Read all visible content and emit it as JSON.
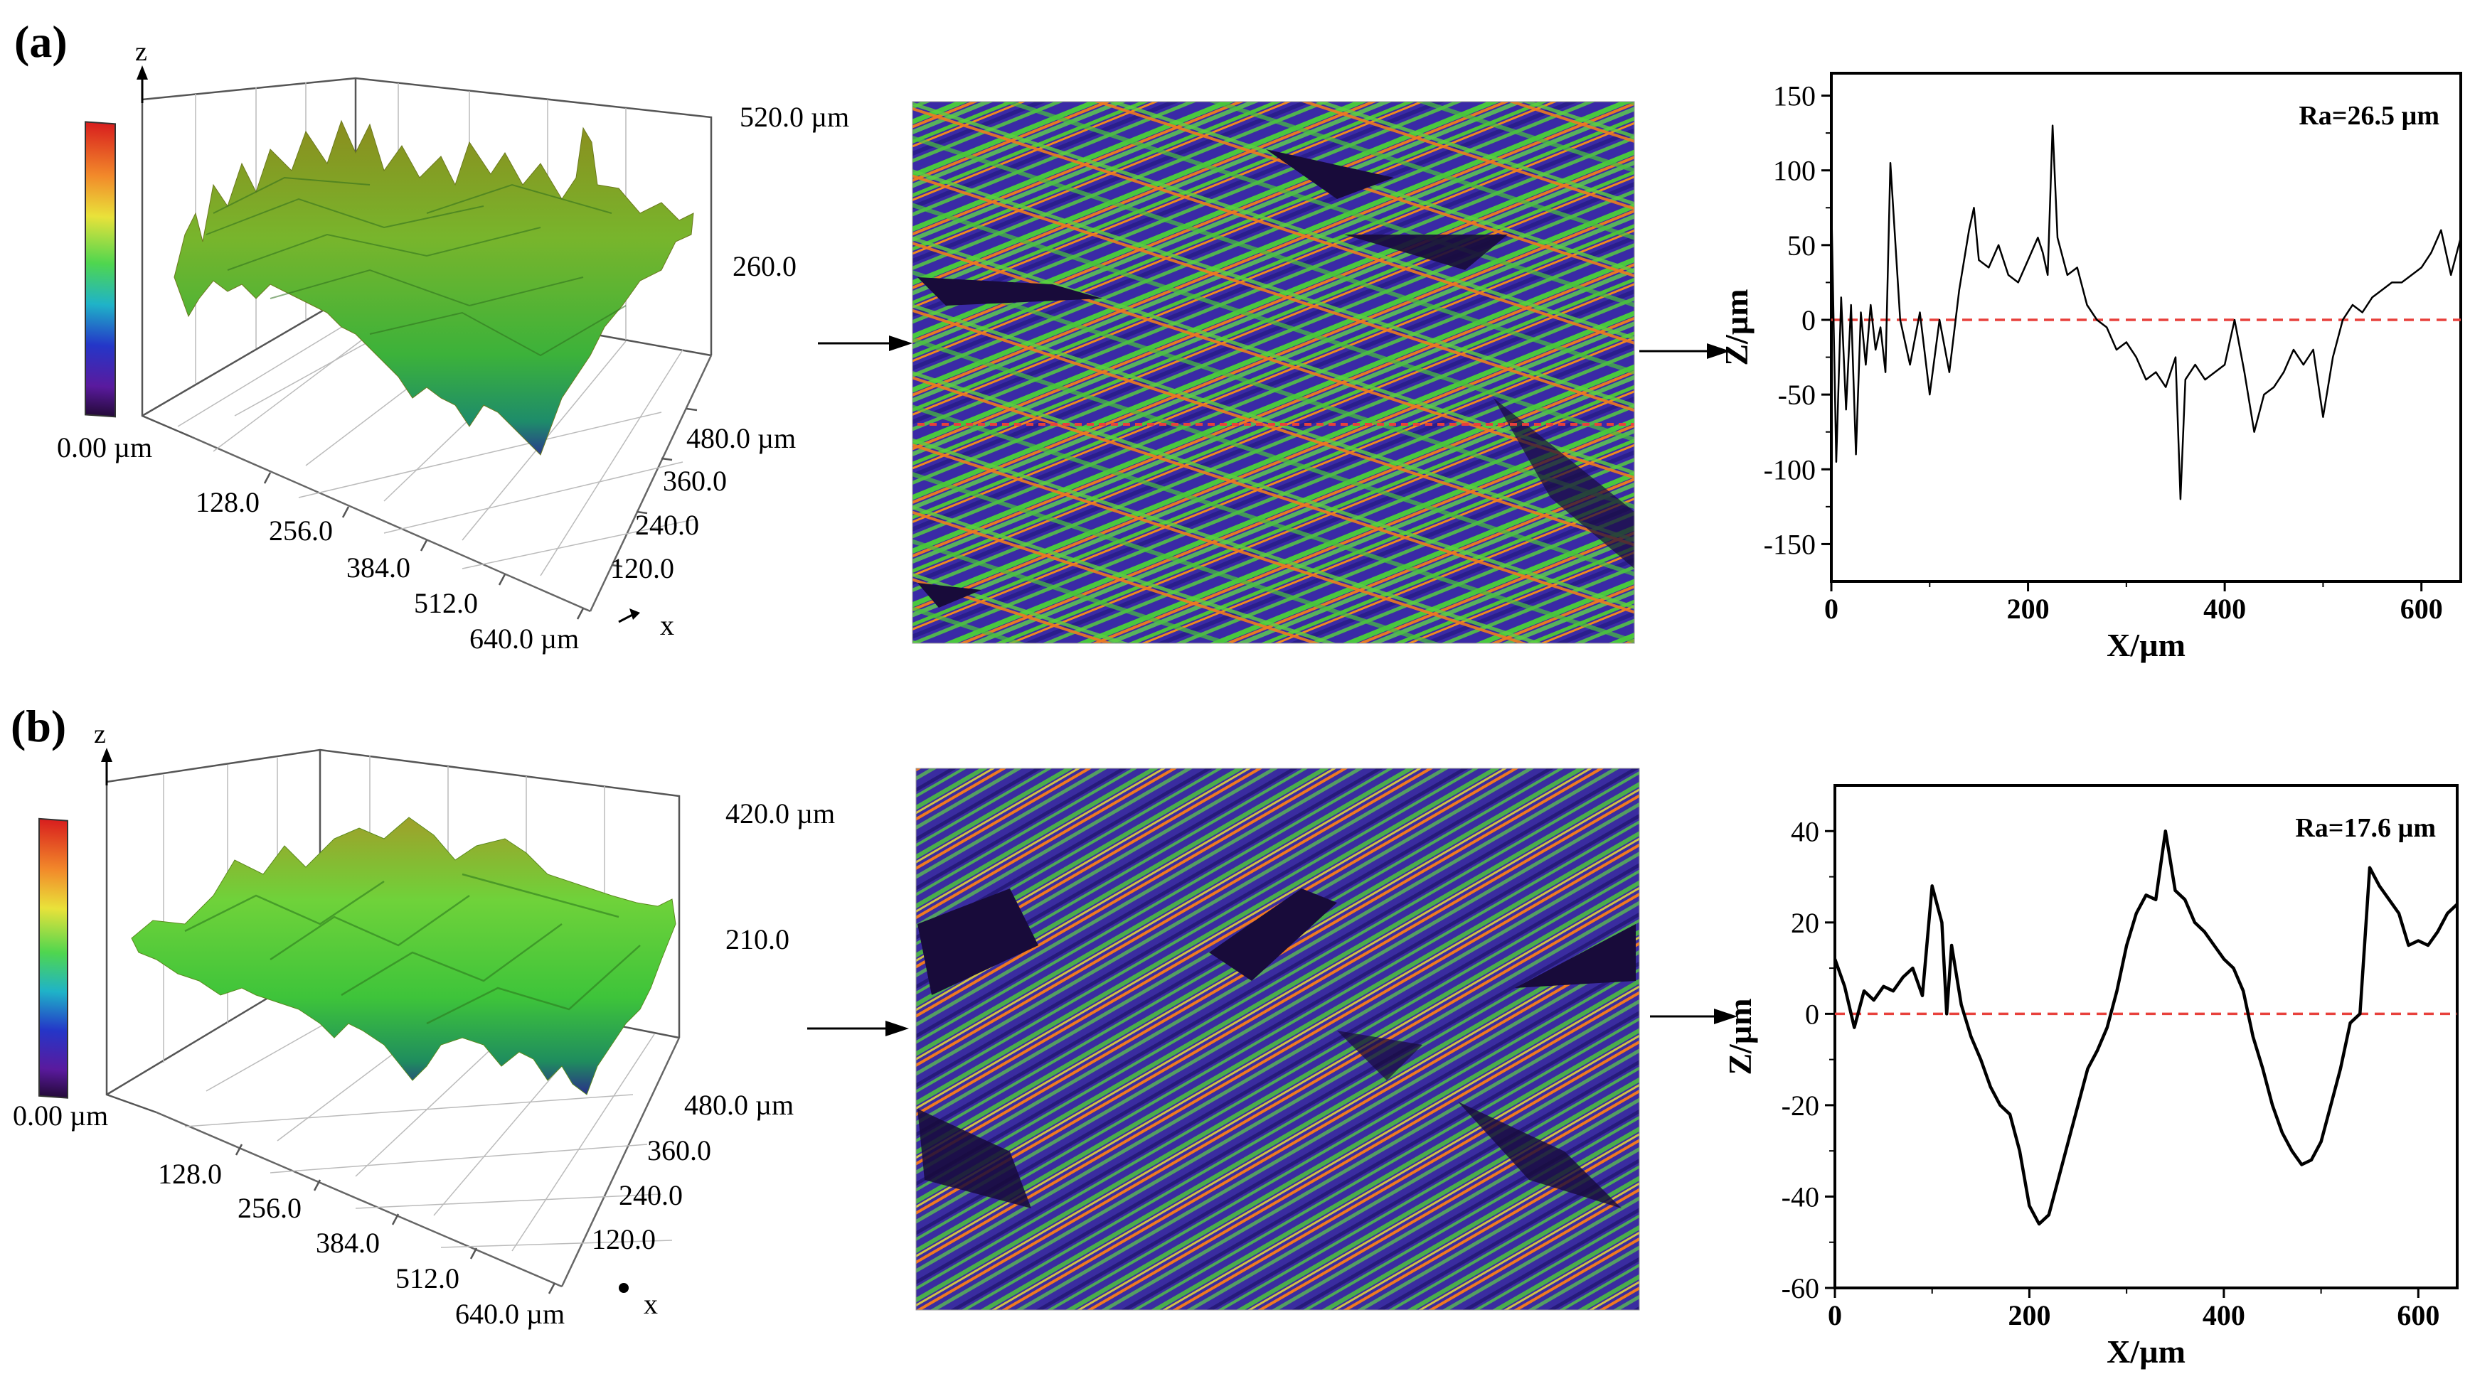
{
  "panels": [
    {
      "label": "(a)",
      "surface": {
        "z_axis": "z",
        "x_axis": "x",
        "z_ticks": [
          "520.0 µm",
          "260.0"
        ],
        "y_ticks": [
          "480.0 µm",
          "360.0",
          "240.0",
          "120.0"
        ],
        "x_ticks": [
          "128.0",
          "256.0",
          "384.0",
          "512.0",
          "640.0 µm"
        ],
        "colorbar_min": "0.00 µm"
      }
    },
    {
      "label": "(b)",
      "surface": {
        "z_axis": "z",
        "x_axis": "x",
        "z_ticks": [
          "420.0 µm",
          "210.0"
        ],
        "y_ticks": [
          "480.0 µm",
          "360.0",
          "240.0",
          "120.0"
        ],
        "x_ticks": [
          "128.0",
          "256.0",
          "384.0",
          "512.0",
          "640.0 µm"
        ],
        "colorbar_min": "0.00 µm"
      }
    }
  ],
  "colors": {
    "profile_line": "#000000",
    "zero_line": "#e8413c",
    "map_base": "#3a2a9a",
    "map_green": "#3fd13f",
    "map_orange": "#f07a1e",
    "map_dark": "#180b3a"
  },
  "chart_data": [
    {
      "type": "line",
      "annotation": "Ra=26.5 µm",
      "xlabel": "X/µm",
      "ylabel": "Z/µm",
      "xlim": [
        0,
        640
      ],
      "ylim": [
        -175,
        165
      ],
      "xticks": [
        0,
        200,
        400,
        600
      ],
      "yticks": [
        -150,
        -100,
        -50,
        0,
        50,
        100,
        150
      ],
      "reference_line": 0,
      "x": [
        0,
        5,
        10,
        15,
        20,
        25,
        30,
        35,
        40,
        45,
        50,
        55,
        60,
        70,
        80,
        90,
        100,
        110,
        120,
        130,
        140,
        145,
        150,
        160,
        170,
        180,
        190,
        200,
        210,
        215,
        220,
        225,
        230,
        240,
        250,
        260,
        270,
        280,
        290,
        300,
        310,
        320,
        330,
        340,
        350,
        355,
        360,
        370,
        380,
        390,
        400,
        410,
        420,
        430,
        440,
        450,
        460,
        470,
        480,
        490,
        500,
        510,
        520,
        530,
        540,
        550,
        560,
        570,
        580,
        590,
        600,
        610,
        620,
        630,
        640
      ],
      "values": [
        80,
        -95,
        15,
        -60,
        10,
        -90,
        5,
        -30,
        10,
        -20,
        -5,
        -35,
        105,
        0,
        -30,
        5,
        -50,
        0,
        -35,
        20,
        60,
        75,
        40,
        35,
        50,
        30,
        25,
        40,
        55,
        45,
        30,
        130,
        55,
        30,
        35,
        10,
        0,
        -5,
        -20,
        -15,
        -25,
        -40,
        -35,
        -45,
        -25,
        -120,
        -40,
        -30,
        -40,
        -35,
        -30,
        0,
        -35,
        -75,
        -50,
        -45,
        -35,
        -20,
        -30,
        -20,
        -65,
        -25,
        0,
        10,
        5,
        15,
        20,
        25,
        25,
        30,
        35,
        45,
        60,
        30,
        55
      ]
    },
    {
      "type": "line",
      "annotation": "Ra=17.6 µm",
      "xlabel": "X/µm",
      "ylabel": "Z/µm",
      "xlim": [
        0,
        640
      ],
      "ylim": [
        -60,
        50
      ],
      "xticks": [
        0,
        200,
        400,
        600
      ],
      "yticks": [
        -60,
        -40,
        -20,
        0,
        20,
        40
      ],
      "reference_line": 0,
      "x": [
        0,
        10,
        20,
        30,
        40,
        50,
        60,
        70,
        80,
        90,
        100,
        110,
        115,
        120,
        130,
        140,
        150,
        160,
        170,
        180,
        190,
        200,
        210,
        220,
        230,
        240,
        250,
        260,
        270,
        280,
        290,
        300,
        310,
        320,
        330,
        340,
        350,
        360,
        370,
        380,
        390,
        400,
        410,
        420,
        430,
        440,
        450,
        460,
        470,
        480,
        490,
        500,
        510,
        520,
        530,
        540,
        550,
        560,
        570,
        580,
        590,
        600,
        610,
        620,
        630,
        640
      ],
      "values": [
        12,
        6,
        -3,
        5,
        3,
        6,
        5,
        8,
        10,
        4,
        28,
        20,
        0,
        15,
        2,
        -5,
        -10,
        -16,
        -20,
        -22,
        -30,
        -42,
        -46,
        -44,
        -36,
        -28,
        -20,
        -12,
        -8,
        -3,
        5,
        15,
        22,
        26,
        25,
        40,
        27,
        25,
        20,
        18,
        15,
        12,
        10,
        5,
        -5,
        -12,
        -20,
        -26,
        -30,
        -33,
        -32,
        -28,
        -20,
        -12,
        -2,
        0,
        32,
        28,
        25,
        22,
        15,
        16,
        15,
        18,
        22,
        24
      ]
    }
  ]
}
